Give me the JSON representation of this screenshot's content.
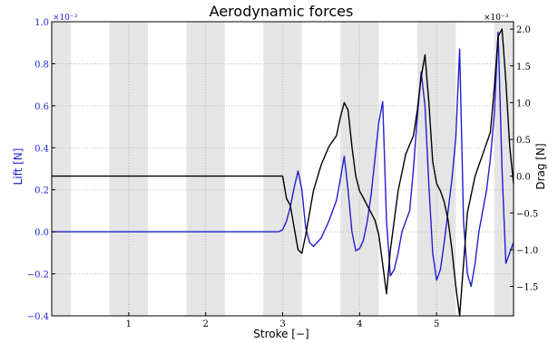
{
  "chart_data": {
    "type": "line",
    "title": "Aerodynamic forces",
    "xlabel": "Stroke [−]",
    "ylabel_left": "Lift [N]",
    "ylabel_right": "Drag [N]",
    "left_multiplier": "×10⁻³",
    "right_multiplier": "×10⁻³",
    "xlim": [
      0,
      6
    ],
    "ylim_left": [
      -0.4,
      1.0
    ],
    "ylim_right": [
      -1.9,
      2.1
    ],
    "x_ticks": [
      1,
      2,
      3,
      4,
      5
    ],
    "left_ticks": [
      "1.0",
      "0.8",
      "0.6",
      "0.4",
      "0.2",
      "0.0",
      "−0.2",
      "−0.4"
    ],
    "left_tick_values": [
      1.0,
      0.8,
      0.6,
      0.4,
      0.2,
      0.0,
      -0.2,
      -0.4
    ],
    "right_ticks": [
      "2.0",
      "1.5",
      "1.0",
      "0.5",
      "0.0",
      "−0.5",
      "−1.0",
      "−1.5"
    ],
    "right_tick_values": [
      2.0,
      1.5,
      1.0,
      0.5,
      0.0,
      -0.5,
      -1.0,
      -1.5
    ],
    "grid": true,
    "shaded_bands": [
      [
        0,
        0.25
      ],
      [
        0.75,
        1.25
      ],
      [
        1.75,
        2.25
      ],
      [
        2.75,
        3.25
      ],
      [
        3.75,
        4.25
      ],
      [
        4.75,
        5.25
      ],
      [
        5.75,
        6.0
      ]
    ],
    "colors": {
      "lift": "#1f1fd0",
      "drag": "#000000",
      "band": "#e5e5e5",
      "grid": "#b0b0b0"
    },
    "series": [
      {
        "axis": "left",
        "color": "#1f1fd0",
        "x": [
          0,
          2.95,
          3.0,
          3.05,
          3.1,
          3.15,
          3.2,
          3.25,
          3.3,
          3.35,
          3.4,
          3.5,
          3.6,
          3.7,
          3.75,
          3.8,
          3.85,
          3.9,
          3.95,
          4.0,
          4.05,
          4.1,
          4.15,
          4.2,
          4.25,
          4.3,
          4.35,
          4.4,
          4.45,
          4.5,
          4.55,
          4.6,
          4.65,
          4.7,
          4.75,
          4.8,
          4.85,
          4.9,
          4.95,
          5.0,
          5.05,
          5.1,
          5.15,
          5.2,
          5.25,
          5.3,
          5.35,
          5.4,
          5.45,
          5.5,
          5.55,
          5.6,
          5.65,
          5.7,
          5.75,
          5.8,
          5.85,
          5.9,
          5.95,
          6.0
        ],
        "y": [
          0.0,
          0.0,
          0.01,
          0.05,
          0.12,
          0.21,
          0.29,
          0.2,
          0.02,
          -0.05,
          -0.07,
          -0.03,
          0.05,
          0.15,
          0.25,
          0.36,
          0.2,
          0.0,
          -0.09,
          -0.08,
          -0.04,
          0.05,
          0.18,
          0.35,
          0.52,
          0.62,
          0.05,
          -0.21,
          -0.18,
          -0.1,
          0.0,
          0.05,
          0.1,
          0.3,
          0.55,
          0.76,
          0.6,
          0.22,
          -0.1,
          -0.23,
          -0.18,
          -0.05,
          0.1,
          0.25,
          0.45,
          0.87,
          0.05,
          -0.2,
          -0.26,
          -0.15,
          0.0,
          0.1,
          0.2,
          0.35,
          0.56,
          0.95,
          0.3,
          -0.15,
          -0.1,
          -0.05
        ]
      },
      {
        "axis": "right",
        "color": "#000000",
        "x": [
          0,
          3.0,
          3.05,
          3.1,
          3.15,
          3.2,
          3.25,
          3.3,
          3.35,
          3.4,
          3.5,
          3.6,
          3.7,
          3.75,
          3.8,
          3.85,
          3.9,
          3.95,
          4.0,
          4.05,
          4.1,
          4.15,
          4.2,
          4.25,
          4.3,
          4.35,
          4.4,
          4.5,
          4.6,
          4.7,
          4.75,
          4.8,
          4.85,
          4.9,
          4.95,
          5.0,
          5.05,
          5.1,
          5.15,
          5.2,
          5.25,
          5.3,
          5.4,
          5.5,
          5.6,
          5.7,
          5.75,
          5.8,
          5.85,
          5.9,
          5.95,
          6.0
        ],
        "y": [
          0.0,
          0.0,
          -0.3,
          -0.4,
          -0.7,
          -1.0,
          -1.05,
          -0.8,
          -0.5,
          -0.2,
          0.15,
          0.4,
          0.55,
          0.8,
          1.0,
          0.9,
          0.4,
          0.0,
          -0.2,
          -0.3,
          -0.4,
          -0.5,
          -0.6,
          -0.8,
          -1.2,
          -1.6,
          -1.0,
          -0.2,
          0.3,
          0.55,
          0.9,
          1.35,
          1.65,
          1.0,
          0.2,
          -0.1,
          -0.2,
          -0.35,
          -0.6,
          -1.0,
          -1.5,
          -1.9,
          -0.5,
          0.0,
          0.3,
          0.6,
          1.2,
          1.9,
          2.0,
          1.3,
          0.4,
          -0.1
        ]
      }
    ]
  }
}
